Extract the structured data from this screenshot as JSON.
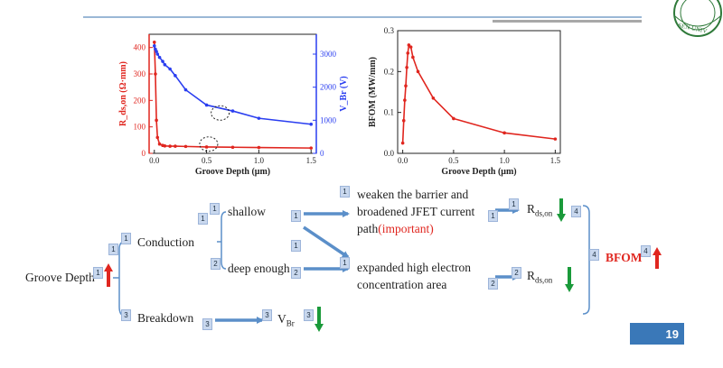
{
  "page_number": "19",
  "colors": {
    "red": "#e0261f",
    "blue": "#2a3ef0",
    "arrow_blue": "#5b8fc9",
    "green": "#1a9a3a",
    "up_red": "#e0261f"
  },
  "chart_data": [
    {
      "type": "line",
      "xlabel": "Groove Depth (μm)",
      "ylabel_left": "R_ds,on (Ω·mm)",
      "ylabel_right": "V_Br (V)",
      "xlim": [
        -0.05,
        1.55
      ],
      "ylim_left": [
        0,
        450
      ],
      "ylim_right": [
        0,
        3600
      ],
      "x_ticks": [
        "0.0",
        "0.5",
        "1.0",
        "1.5"
      ],
      "y_ticks_left": [
        "0",
        "100",
        "200",
        "300",
        "400"
      ],
      "y_ticks_right": [
        "0",
        "1000",
        "2000",
        "3000"
      ],
      "series": [
        {
          "axis": "left",
          "color": "#e0261f",
          "x": [
            0.0,
            0.01,
            0.02,
            0.03,
            0.05,
            0.08,
            0.1,
            0.15,
            0.2,
            0.3,
            0.5,
            0.75,
            1.0,
            1.5
          ],
          "y": [
            420,
            300,
            125,
            60,
            35,
            30,
            28,
            27,
            27,
            26,
            24,
            23,
            22,
            20
          ]
        },
        {
          "axis": "right",
          "color": "#2a3ef0",
          "x": [
            0.0,
            0.01,
            0.02,
            0.03,
            0.05,
            0.08,
            0.1,
            0.15,
            0.2,
            0.3,
            0.5,
            0.75,
            1.0,
            1.5
          ],
          "y": [
            3250,
            3150,
            3080,
            3000,
            2900,
            2780,
            2680,
            2550,
            2350,
            1920,
            1460,
            1280,
            1060,
            880
          ]
        }
      ]
    },
    {
      "type": "line",
      "xlabel": "Groove Depth (μm)",
      "ylabel": "BFOM (MW/mm)",
      "xlim": [
        -0.05,
        1.55
      ],
      "ylim": [
        0,
        0.3
      ],
      "x_ticks": [
        "0.0",
        "0.5",
        "1.0",
        "1.5"
      ],
      "y_ticks": [
        "0.0",
        "0.1",
        "0.2",
        "0.3"
      ],
      "series": [
        {
          "color": "#e0261f",
          "x": [
            0.0,
            0.01,
            0.02,
            0.03,
            0.04,
            0.05,
            0.06,
            0.08,
            0.1,
            0.15,
            0.3,
            0.5,
            1.0,
            1.5
          ],
          "y": [
            0.025,
            0.08,
            0.13,
            0.165,
            0.21,
            0.245,
            0.265,
            0.26,
            0.235,
            0.2,
            0.135,
            0.085,
            0.05,
            0.035
          ]
        }
      ]
    }
  ],
  "diagram": {
    "groove_depth": "Groove Depth",
    "conduction": "Conduction",
    "breakdown": "Breakdown",
    "shallow": "shallow",
    "deep": "deep enough",
    "weaken_line1": "weaken the barrier and",
    "weaken_line2": "broadened JFET current",
    "weaken_line3": "path",
    "important": "(important)",
    "expanded_line1": "expanded high electron",
    "expanded_line2": "concentration area",
    "rds": "R",
    "rds_sub": "ds,on",
    "vbr": "V",
    "vbr_sub": "Br",
    "bfom": "BFOM"
  },
  "badges": [
    "1",
    "1",
    "1",
    "1",
    "1",
    "1",
    "1",
    "1",
    "1",
    "1",
    "1",
    "2",
    "2",
    "2",
    "2",
    "3",
    "3",
    "3",
    "3",
    "4",
    "4",
    "4"
  ]
}
